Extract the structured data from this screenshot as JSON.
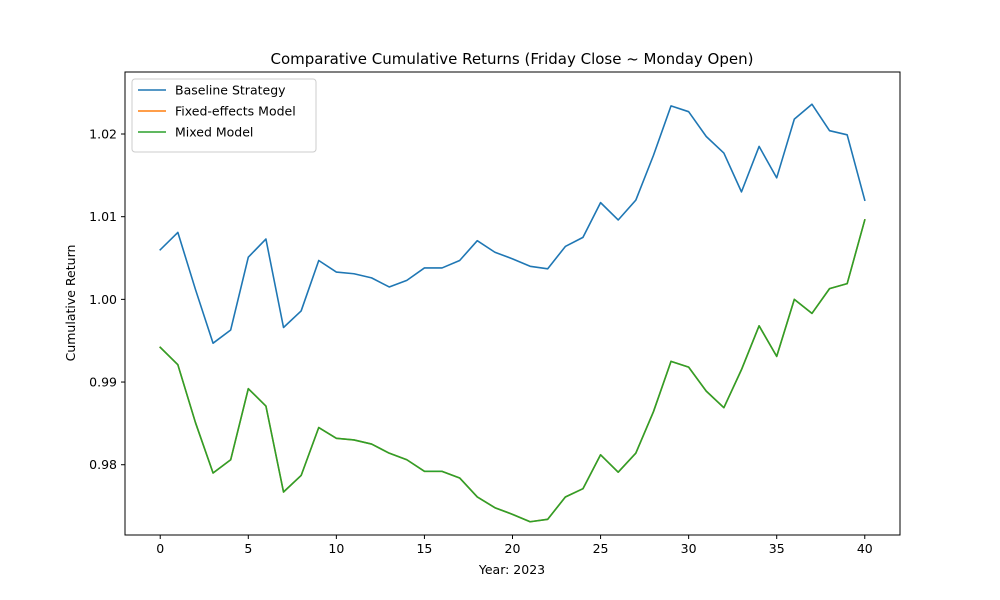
{
  "chart_data": {
    "type": "line",
    "title": "Comparative Cumulative Returns (Friday Close ~ Monday Open)",
    "xlabel": "Year: 2023",
    "ylabel": "Cumulative Return",
    "xlim": [
      -2,
      42
    ],
    "ylim": [
      0.9715,
      1.0275
    ],
    "xticks": [
      0,
      5,
      10,
      15,
      20,
      25,
      30,
      35,
      40
    ],
    "xtick_labels": [
      "0",
      "5",
      "10",
      "15",
      "20",
      "25",
      "30",
      "35",
      "40"
    ],
    "yticks": [
      0.98,
      0.99,
      1.0,
      1.01,
      1.02
    ],
    "ytick_labels": [
      "0.98",
      "0.99",
      "1.00",
      "1.01",
      "1.02"
    ],
    "grid": false,
    "legend_position": "top-left",
    "x": [
      0,
      1,
      2,
      3,
      4,
      5,
      6,
      7,
      8,
      9,
      10,
      11,
      12,
      13,
      14,
      15,
      16,
      17,
      18,
      19,
      20,
      21,
      22,
      23,
      24,
      25,
      26,
      27,
      28,
      29,
      30,
      31,
      32,
      33,
      34,
      35,
      36,
      37,
      38,
      39,
      40
    ],
    "series": [
      {
        "name": "Baseline Strategy",
        "color": "#1f77b4",
        "values": [
          1.006,
          1.0081,
          1.0012,
          0.9947,
          0.9963,
          1.0051,
          1.0073,
          0.9966,
          0.9986,
          1.0047,
          1.0033,
          1.0031,
          1.0026,
          1.0015,
          1.0023,
          1.0038,
          1.0038,
          1.0047,
          1.0071,
          1.0057,
          1.0049,
          1.004,
          1.0037,
          1.0064,
          1.0075,
          1.0117,
          1.0096,
          1.012,
          1.0174,
          1.0234,
          1.0227,
          1.0197,
          1.0177,
          1.013,
          1.0185,
          1.0147,
          1.0218,
          1.0236,
          1.0204,
          1.0199,
          1.012
        ]
      },
      {
        "name": "Fixed-effects Model",
        "color": "#ff7f0e",
        "values": [
          0.9942,
          0.9921,
          0.9851,
          0.979,
          0.9806,
          0.9892,
          0.9871,
          0.9767,
          0.9787,
          0.9845,
          0.9832,
          0.983,
          0.9825,
          0.9814,
          0.9806,
          0.9792,
          0.9792,
          0.9784,
          0.9761,
          0.9748,
          0.974,
          0.9731,
          0.9734,
          0.9761,
          0.9771,
          0.9812,
          0.9791,
          0.9814,
          0.9864,
          0.9925,
          0.9918,
          0.9889,
          0.9869,
          0.9915,
          0.9968,
          0.9931,
          1.0,
          0.9983,
          1.0013,
          1.0019,
          1.0096
        ]
      },
      {
        "name": "Mixed Model",
        "color": "#2ca02c",
        "values": [
          0.9942,
          0.9921,
          0.9851,
          0.979,
          0.9806,
          0.9892,
          0.9871,
          0.9767,
          0.9787,
          0.9845,
          0.9832,
          0.983,
          0.9825,
          0.9814,
          0.9806,
          0.9792,
          0.9792,
          0.9784,
          0.9761,
          0.9748,
          0.974,
          0.9731,
          0.9734,
          0.9761,
          0.9771,
          0.9812,
          0.9791,
          0.9814,
          0.9864,
          0.9925,
          0.9918,
          0.9889,
          0.9869,
          0.9915,
          0.9968,
          0.9931,
          1.0,
          0.9983,
          1.0013,
          1.0019,
          1.0096
        ]
      }
    ]
  }
}
